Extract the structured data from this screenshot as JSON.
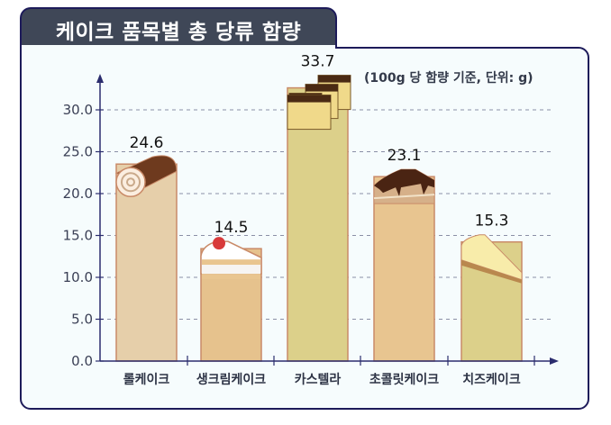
{
  "title": "케이크 품목별 총 당류 함량",
  "unit_note": "(100g 당 함량 기준, 단위: g)",
  "colors": {
    "title_bg": "#3f4757",
    "border": "#1d1b5a",
    "panel_bg": "#f6fcfd",
    "axis": "#2b2d6e",
    "grid": "#8a8fa6",
    "bar_outline": "#c98a68"
  },
  "chart_data": {
    "type": "bar",
    "title": "케이크 품목별 총 당류 함량",
    "subtitle": "(100g 당 함량 기준, 단위: g)",
    "xlabel": "",
    "ylabel": "",
    "categories": [
      "롤케이크",
      "생크림케이크",
      "카스텔라",
      "초콜릿케이크",
      "치즈케이크"
    ],
    "values": [
      24.6,
      14.5,
      33.7,
      23.1,
      15.3
    ],
    "value_labels": [
      "24.6",
      "14.5",
      "33.7",
      "23.1",
      "15.3"
    ],
    "bar_colors": [
      "#e6cfaa",
      "#e6c28d",
      "#dcd08a",
      "#e8c590",
      "#dcd08a"
    ],
    "yticks": [
      "0.0",
      "5.0",
      "10.0",
      "15.0",
      "20.0",
      "25.0",
      "30.0"
    ],
    "ylim": [
      0,
      30
    ],
    "grid": true,
    "grid_style": "dashed horizontal",
    "legend": null,
    "annotations": [
      "bar tops decorated with cake illustrations: roll cake, strawberry cream cake slice, castella, chocolate cake slice, cheesecake slice"
    ]
  }
}
